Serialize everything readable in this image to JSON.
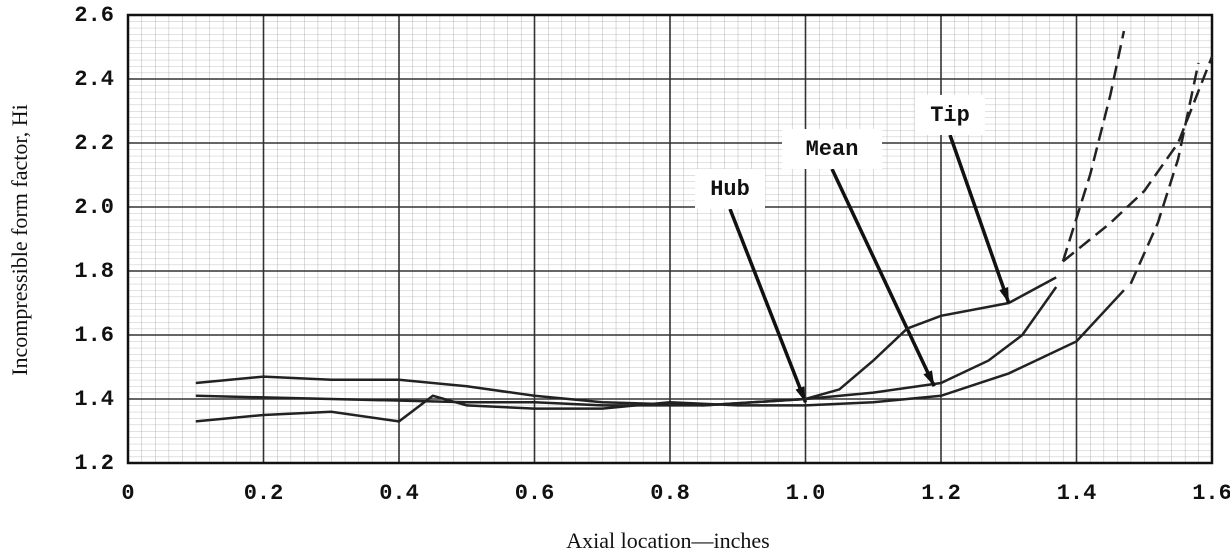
{
  "chart_data": {
    "type": "line",
    "xlabel": "Axial location—inches",
    "ylabel": "Incompressible form factor, Hi",
    "xlim": [
      0,
      1.6
    ],
    "ylim": [
      1.2,
      2.6
    ],
    "xticks": [
      0,
      0.2,
      0.4,
      0.6,
      0.8,
      {
        "value": 1,
        "label": "1.0"
      },
      1.2,
      1.4,
      1.6
    ],
    "yticks": [
      1.2,
      1.4,
      1.6,
      1.8,
      {
        "value": 2,
        "label": "2.0"
      },
      2.2,
      2.4,
      2.6
    ],
    "grid": true,
    "series": [
      {
        "name": "Hub",
        "color": "#222222",
        "x": [
          0.1,
          0.2,
          0.3,
          0.4,
          0.45,
          0.5,
          0.6,
          0.7,
          0.8,
          0.9,
          1.0,
          1.1,
          1.2,
          1.3,
          1.4,
          1.47
        ],
        "values": [
          1.33,
          1.35,
          1.36,
          1.33,
          1.41,
          1.38,
          1.37,
          1.37,
          1.39,
          1.38,
          1.38,
          1.39,
          1.41,
          1.48,
          1.58,
          1.74
        ],
        "extension": {
          "x": [
            1.48,
            1.52,
            1.55,
            1.58
          ],
          "values": [
            1.76,
            1.95,
            2.15,
            2.45
          ]
        },
        "label_at": {
          "x": 1.0,
          "y": 1.39
        }
      },
      {
        "name": "Mean",
        "color": "#222222",
        "x": [
          0.1,
          0.3,
          0.5,
          0.6,
          0.7,
          0.85,
          1.0,
          1.1,
          1.2,
          1.27,
          1.32,
          1.37
        ],
        "values": [
          1.41,
          1.4,
          1.39,
          1.39,
          1.38,
          1.38,
          1.4,
          1.42,
          1.45,
          1.52,
          1.6,
          1.75
        ],
        "extension": {
          "x": [
            1.38,
            1.45,
            1.5,
            1.55,
            1.6
          ],
          "values": [
            1.83,
            1.95,
            2.05,
            2.2,
            2.47
          ]
        },
        "label_at": {
          "x": 1.19,
          "y": 1.44
        }
      },
      {
        "name": "Tip",
        "color": "#222222",
        "x": [
          0.1,
          0.2,
          0.3,
          0.4,
          0.5,
          0.6,
          0.7,
          0.85,
          1.0,
          1.05,
          1.1,
          1.15,
          1.2,
          1.3,
          1.37
        ],
        "values": [
          1.45,
          1.47,
          1.46,
          1.46,
          1.44,
          1.41,
          1.39,
          1.38,
          1.4,
          1.43,
          1.52,
          1.62,
          1.66,
          1.7,
          1.78
        ],
        "extension": {
          "x": [
            1.38,
            1.42,
            1.45,
            1.47
          ],
          "values": [
            1.83,
            2.1,
            2.35,
            2.55
          ]
        },
        "label_at": {
          "x": 1.3,
          "y": 1.7
        }
      }
    ]
  }
}
